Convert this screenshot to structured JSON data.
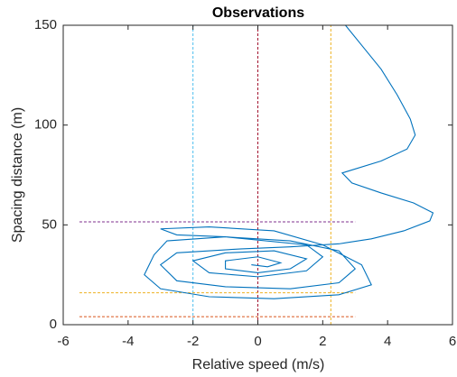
{
  "chart_data": {
    "type": "line",
    "title": "Observations",
    "x_label": "Relative speed (m/s)",
    "y_label": "Spacing distance (m)",
    "xlim": [
      -6,
      6
    ],
    "ylim": [
      0,
      150
    ],
    "xticks": [
      -6,
      -4,
      -2,
      0,
      2,
      4,
      6
    ],
    "yticks": [
      0,
      50,
      100,
      150
    ],
    "grid": false,
    "series": [
      {
        "color": "#4DBEEE",
        "linestyle": "dashed",
        "x": [
          -2,
          -2
        ],
        "values": [
          0,
          150
        ]
      },
      {
        "color": "#A2142F",
        "linestyle": "dashed",
        "x": [
          0,
          0
        ],
        "values": [
          0,
          150
        ]
      },
      {
        "color": "#EDB120",
        "linestyle": "dashed",
        "x": [
          2.25,
          2.25
        ],
        "values": [
          0,
          150
        ]
      },
      {
        "color": "#7E2F8E",
        "linestyle": "dashed",
        "x": [
          -5.5,
          3
        ],
        "values": [
          51.5,
          51.5
        ]
      },
      {
        "color": "#EDB120",
        "linestyle": "dashed",
        "x": [
          -5.5,
          3
        ],
        "values": [
          16,
          16
        ]
      },
      {
        "color": "#D95319",
        "linestyle": "dashed",
        "x": [
          -5.5,
          3
        ],
        "values": [
          4,
          4
        ]
      },
      {
        "color": "#0072BD",
        "linestyle": "solid",
        "x": [
          2.7,
          3.3,
          3.8,
          4.3,
          4.7,
          4.85,
          4.6,
          3.8,
          2.6,
          2.9,
          3.8,
          4.8,
          5.4,
          5.3,
          4.5,
          3.5,
          2.5,
          1.0,
          -0.5,
          -2.5,
          -3.0,
          -2.5,
          -1,
          1,
          2.5,
          3,
          2.5,
          1,
          -1,
          -2.8,
          -3.2,
          -3.5,
          -3,
          -1.5,
          0.5,
          2.5,
          3.5,
          3.2,
          2,
          0.5,
          -1.5,
          -3,
          -2.5,
          -1,
          1.5,
          2,
          1.5,
          0,
          -1.5,
          -2,
          -1,
          0.5,
          1.5,
          1,
          0,
          -1,
          -1,
          0,
          0.7,
          0.3,
          -0.2
        ],
        "values": [
          150,
          138,
          128,
          115,
          103,
          95,
          88,
          82,
          76,
          71,
          66,
          61,
          56,
          52,
          47,
          43,
          40.5,
          39,
          38,
          36,
          30,
          22,
          19,
          18,
          21,
          28,
          37,
          42,
          44,
          42,
          35,
          25,
          18,
          14,
          13,
          15,
          20,
          30,
          40,
          47,
          49,
          48,
          45,
          44,
          40,
          34,
          27,
          24,
          26,
          32,
          36,
          37,
          33,
          28,
          26,
          28,
          32,
          34,
          31,
          29,
          30
        ]
      }
    ]
  }
}
